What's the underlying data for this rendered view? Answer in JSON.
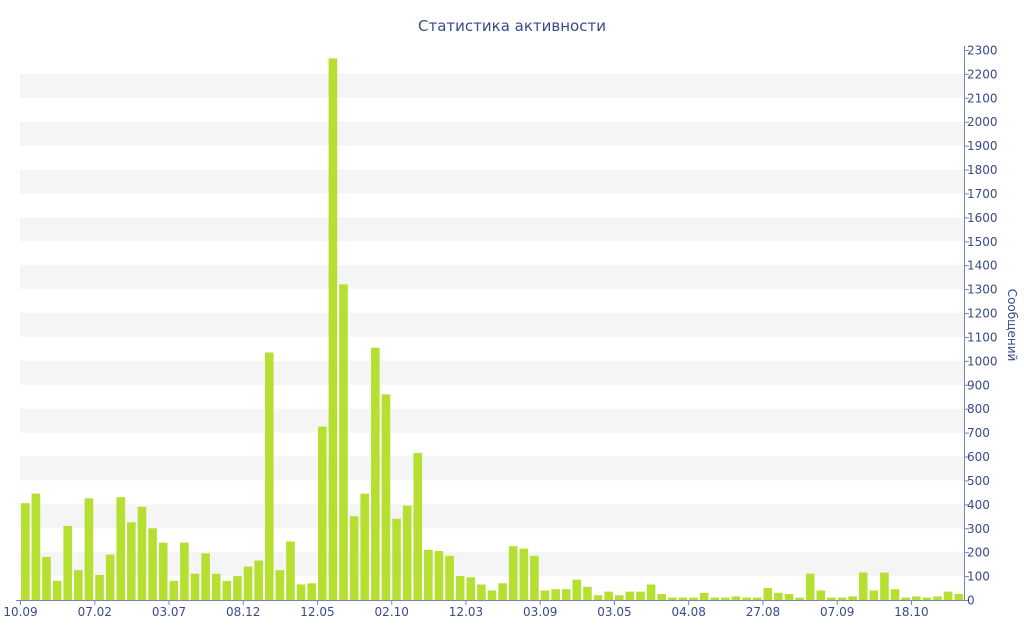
{
  "chart_data": {
    "type": "bar",
    "title": "Статистика активности",
    "xlabel": "",
    "ylabel": "Сообщений",
    "ylim": [
      0,
      2300
    ],
    "y_ticks": [
      0,
      100,
      200,
      300,
      400,
      500,
      600,
      700,
      800,
      900,
      1000,
      1100,
      1200,
      1300,
      1400,
      1500,
      1600,
      1700,
      1800,
      1900,
      2000,
      2100,
      2200,
      2300
    ],
    "x_ticks": [
      {
        "index": 0,
        "label": "10.09"
      },
      {
        "index": 7,
        "label": "07.02"
      },
      {
        "index": 14,
        "label": "03.07"
      },
      {
        "index": 21,
        "label": "08.12"
      },
      {
        "index": 28,
        "label": "12.05"
      },
      {
        "index": 35,
        "label": "02.10"
      },
      {
        "index": 42,
        "label": "12.03"
      },
      {
        "index": 49,
        "label": "03.09"
      },
      {
        "index": 56,
        "label": "03.05"
      },
      {
        "index": 63,
        "label": "04.08"
      },
      {
        "index": 70,
        "label": "27.08"
      },
      {
        "index": 77,
        "label": "07.09"
      },
      {
        "index": 84,
        "label": "18.10"
      }
    ],
    "values": [
      405,
      445,
      180,
      80,
      310,
      125,
      425,
      105,
      190,
      430,
      325,
      390,
      300,
      240,
      80,
      240,
      110,
      195,
      110,
      80,
      100,
      140,
      165,
      1035,
      125,
      245,
      65,
      70,
      725,
      2265,
      1320,
      350,
      445,
      1055,
      860,
      340,
      395,
      615,
      210,
      205,
      185,
      100,
      95,
      65,
      40,
      70,
      225,
      215,
      185,
      40,
      45,
      45,
      85,
      55,
      20,
      35,
      20,
      35,
      35,
      65,
      25,
      10,
      10,
      10,
      30,
      10,
      10,
      15,
      10,
      10,
      50,
      30,
      25,
      10,
      110,
      40,
      10,
      10,
      15,
      115,
      40,
      115,
      45,
      10,
      15,
      10,
      15,
      35,
      25
    ],
    "grid": "alternating horizontal bands",
    "colors": {
      "bar": "#b6e031",
      "band": "#f5f5f5",
      "axis": "#7a84b0",
      "text": "#3a4a8a"
    }
  }
}
